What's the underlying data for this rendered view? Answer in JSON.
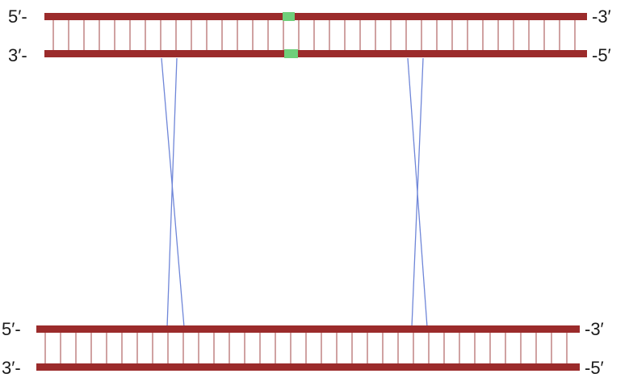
{
  "top_duplex": {
    "left_top": "5′-",
    "right_top": "-3′",
    "left_bottom": "3′-",
    "right_bottom": "-5′"
  },
  "bottom_duplex": {
    "left_top": "5′-",
    "right_top": "-3′",
    "left_bottom": "3′-",
    "right_bottom": "-5′"
  }
}
